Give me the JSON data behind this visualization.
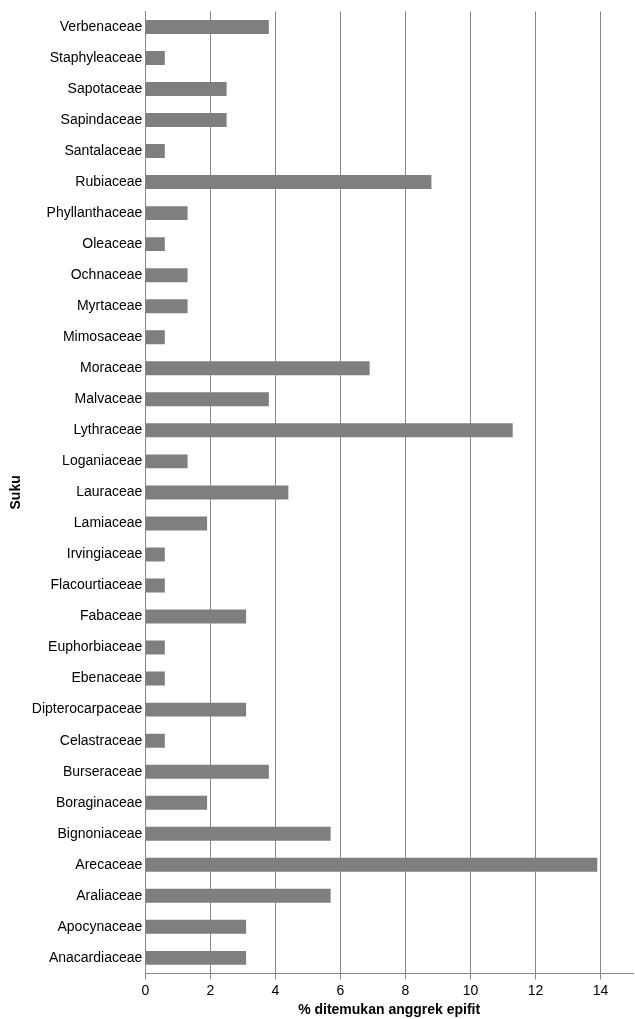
{
  "chart_data": {
    "type": "bar",
    "orientation": "horizontal",
    "xlabel": "% ditemukan anggrek epifit",
    "ylabel": "Suku",
    "categories": [
      "Verbenaceae",
      "Staphyleaceae",
      "Sapotaceae",
      "Sapindaceae",
      "Santalaceae",
      "Rubiaceae",
      "Phyllanthaceae",
      "Oleaceae",
      "Ochnaceae",
      "Myrtaceae",
      "Mimosaceae",
      "Moraceae",
      "Malvaceae",
      "Lythraceae",
      "Loganiaceae",
      "Lauraceae",
      "Lamiaceae",
      "Irvingiaceae",
      "Flacourtiaceae",
      "Fabaceae",
      "Euphorbiaceae",
      "Ebenaceae",
      "Dipterocarpaceae",
      "Celastraceae",
      "Burseraceae",
      "Boraginaceae",
      "Bignoniaceae",
      "Arecaceae",
      "Araliaceae",
      "Apocynaceae",
      "Anacardiaceae"
    ],
    "values": [
      3.8,
      0.6,
      2.5,
      2.5,
      0.6,
      8.8,
      1.3,
      0.6,
      1.3,
      1.3,
      0.6,
      6.9,
      3.8,
      11.3,
      1.3,
      4.4,
      1.9,
      0.6,
      0.6,
      3.1,
      0.6,
      0.6,
      3.1,
      0.6,
      3.8,
      1.9,
      5.7,
      13.9,
      5.7,
      3.1,
      3.1
    ],
    "color": "#7f7f7f",
    "xlim": [
      0,
      15
    ],
    "xticks": [
      0,
      2,
      4,
      6,
      8,
      10,
      12,
      14
    ],
    "grid": "x",
    "legend": false
  }
}
